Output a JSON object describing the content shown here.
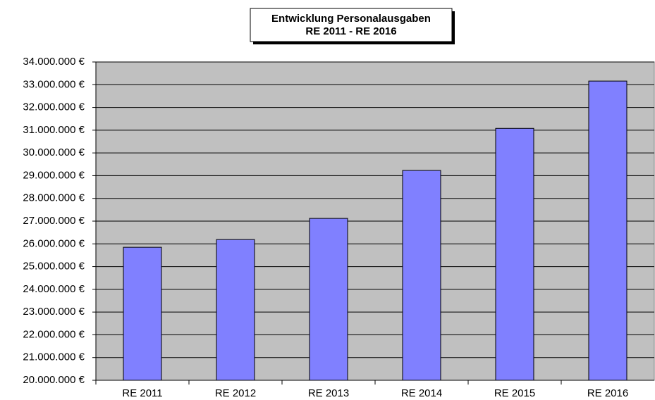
{
  "chart_data": {
    "type": "bar",
    "title": "Entwicklung Personalausgaben",
    "subtitle": "RE 2011 - RE 2016",
    "categories": [
      "RE 2011",
      "RE 2012",
      "RE 2013",
      "RE 2014",
      "RE 2015",
      "RE 2016"
    ],
    "values": [
      25850000,
      26190000,
      27120000,
      29230000,
      31080000,
      33160000
    ],
    "color": "#8080ff",
    "plot_background": "#c0c0c0",
    "grid": true,
    "ylim": [
      20000000,
      34000000
    ],
    "yticks": [
      {
        "value": 20000000,
        "label": "20.000.000 €"
      },
      {
        "value": 21000000,
        "label": "21.000.000 €"
      },
      {
        "value": 22000000,
        "label": "22.000.000 €"
      },
      {
        "value": 23000000,
        "label": "23.000.000 €"
      },
      {
        "value": 24000000,
        "label": "24.000.000 €"
      },
      {
        "value": 25000000,
        "label": "25.000.000 €"
      },
      {
        "value": 26000000,
        "label": "26.000.000 €"
      },
      {
        "value": 27000000,
        "label": "27.000.000 €"
      },
      {
        "value": 28000000,
        "label": "28.000.000 €"
      },
      {
        "value": 29000000,
        "label": "29.000.000 €"
      },
      {
        "value": 30000000,
        "label": "30.000.000 €"
      },
      {
        "value": 31000000,
        "label": "31.000.000 €"
      },
      {
        "value": 32000000,
        "label": "32.000.000 €"
      },
      {
        "value": 33000000,
        "label": "33.000.000 €"
      },
      {
        "value": 34000000,
        "label": "34.000.000 €"
      }
    ]
  }
}
